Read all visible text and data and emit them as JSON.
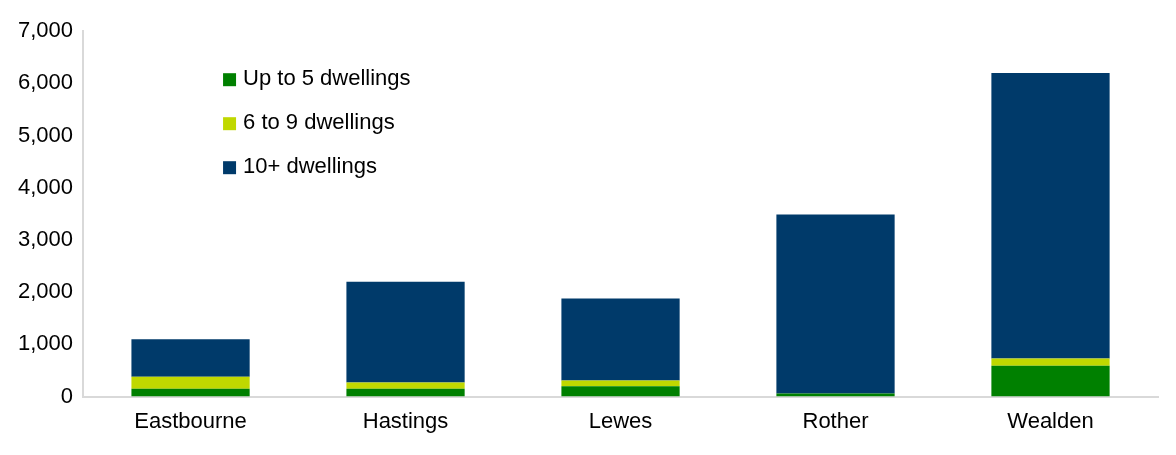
{
  "chart_data": {
    "type": "bar",
    "stacked": true,
    "categories": [
      "Eastbourne",
      "Hastings",
      "Lewes",
      "Rother",
      "Wealden"
    ],
    "series": [
      {
        "name": "Up to 5 dwellings",
        "color": "#008000",
        "values": [
          150,
          150,
          200,
          60,
          590
        ]
      },
      {
        "name": "6 to 9 dwellings",
        "color": "#c0d800",
        "values": [
          230,
          120,
          110,
          null,
          140
        ]
      },
      {
        "name": "10+ dwellings",
        "color": "#003a6a",
        "values": [
          720,
          1930,
          1570,
          3430,
          5470
        ]
      }
    ],
    "ylim": [
      0,
      7000
    ],
    "yticks": [
      {
        "value": 0,
        "label": "0"
      },
      {
        "value": 1000,
        "label": "1,000"
      },
      {
        "value": 2000,
        "label": "2,000"
      },
      {
        "value": 3000,
        "label": "3,000"
      },
      {
        "value": 4000,
        "label": "4,000"
      },
      {
        "value": 5000,
        "label": "5,000"
      },
      {
        "value": 6000,
        "label": "6,000"
      },
      {
        "value": 7000,
        "label": "7,000"
      }
    ],
    "grid": false,
    "legend": "top left"
  }
}
